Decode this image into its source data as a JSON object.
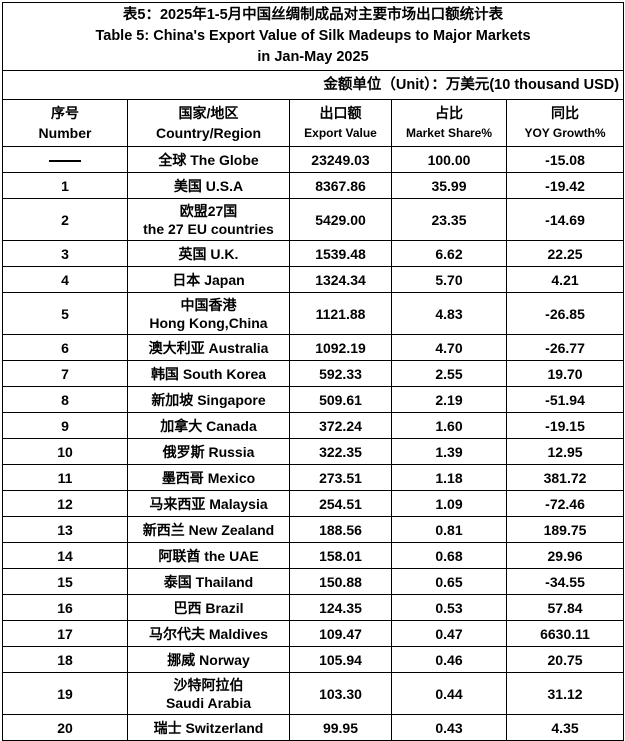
{
  "title": {
    "zh": "表5：2025年1-5月中国丝绸制成品对主要市场出口额统计表",
    "en_line1": "Table 5: China's Export Value of Silk Madeups to Major Markets",
    "en_line2": "in Jan-May 2025"
  },
  "unit": "金额单位（Unit）：万美元(10 thousand USD)",
  "headers": [
    {
      "zh": "序号",
      "en": "Number"
    },
    {
      "zh": "国家/地区",
      "en": "Country/Region"
    },
    {
      "zh": "出口额",
      "en": "Export Value"
    },
    {
      "zh": "占比",
      "en": "Market Share%"
    },
    {
      "zh": "同比",
      "en": "YOY Growth%"
    }
  ],
  "rows": [
    {
      "num": "——",
      "region": [
        "全球 The Globe"
      ],
      "value": "23249.03",
      "share": "100.00",
      "yoy": "-15.08"
    },
    {
      "num": "1",
      "region": [
        "美国 U.S.A"
      ],
      "value": "8367.86",
      "share": "35.99",
      "yoy": "-19.42"
    },
    {
      "num": "2",
      "region": [
        "欧盟27国",
        "the 27 EU countries"
      ],
      "value": "5429.00",
      "share": "23.35",
      "yoy": "-14.69"
    },
    {
      "num": "3",
      "region": [
        "英国 U.K."
      ],
      "value": "1539.48",
      "share": "6.62",
      "yoy": "22.25"
    },
    {
      "num": "4",
      "region": [
        "日本 Japan"
      ],
      "value": "1324.34",
      "share": "5.70",
      "yoy": "4.21"
    },
    {
      "num": "5",
      "region": [
        "中国香港",
        "Hong Kong,China"
      ],
      "value": "1121.88",
      "share": "4.83",
      "yoy": "-26.85"
    },
    {
      "num": "6",
      "region": [
        "澳大利亚 Australia"
      ],
      "value": "1092.19",
      "share": "4.70",
      "yoy": "-26.77"
    },
    {
      "num": "7",
      "region": [
        "韩国 South Korea"
      ],
      "value": "592.33",
      "share": "2.55",
      "yoy": "19.70"
    },
    {
      "num": "8",
      "region": [
        "新加坡 Singapore"
      ],
      "value": "509.61",
      "share": "2.19",
      "yoy": "-51.94"
    },
    {
      "num": "9",
      "region": [
        "加拿大 Canada"
      ],
      "value": "372.24",
      "share": "1.60",
      "yoy": "-19.15"
    },
    {
      "num": "10",
      "region": [
        "俄罗斯 Russia"
      ],
      "value": "322.35",
      "share": "1.39",
      "yoy": "12.95"
    },
    {
      "num": "11",
      "region": [
        "墨西哥 Mexico"
      ],
      "value": "273.51",
      "share": "1.18",
      "yoy": "381.72"
    },
    {
      "num": "12",
      "region": [
        "马来西亚 Malaysia"
      ],
      "value": "254.51",
      "share": "1.09",
      "yoy": "-72.46"
    },
    {
      "num": "13",
      "region": [
        "新西兰 New Zealand"
      ],
      "value": "188.56",
      "share": "0.81",
      "yoy": "189.75"
    },
    {
      "num": "14",
      "region": [
        "阿联酋 the UAE"
      ],
      "value": "158.01",
      "share": "0.68",
      "yoy": "29.96"
    },
    {
      "num": "15",
      "region": [
        "泰国 Thailand"
      ],
      "value": "150.88",
      "share": "0.65",
      "yoy": "-34.55"
    },
    {
      "num": "16",
      "region": [
        "巴西 Brazil"
      ],
      "value": "124.35",
      "share": "0.53",
      "yoy": "57.84"
    },
    {
      "num": "17",
      "region": [
        "马尔代夫  Maldives"
      ],
      "value": "109.47",
      "share": "0.47",
      "yoy": "6630.11"
    },
    {
      "num": "18",
      "region": [
        "挪威 Norway"
      ],
      "value": "105.94",
      "share": "0.46",
      "yoy": "20.75"
    },
    {
      "num": "19",
      "region": [
        "沙特阿拉伯",
        "Saudi Arabia"
      ],
      "value": "103.30",
      "share": "0.44",
      "yoy": "31.12"
    },
    {
      "num": "20",
      "region": [
        "瑞士 Switzerland"
      ],
      "value": "99.95",
      "share": "0.43",
      "yoy": "4.35"
    }
  ]
}
